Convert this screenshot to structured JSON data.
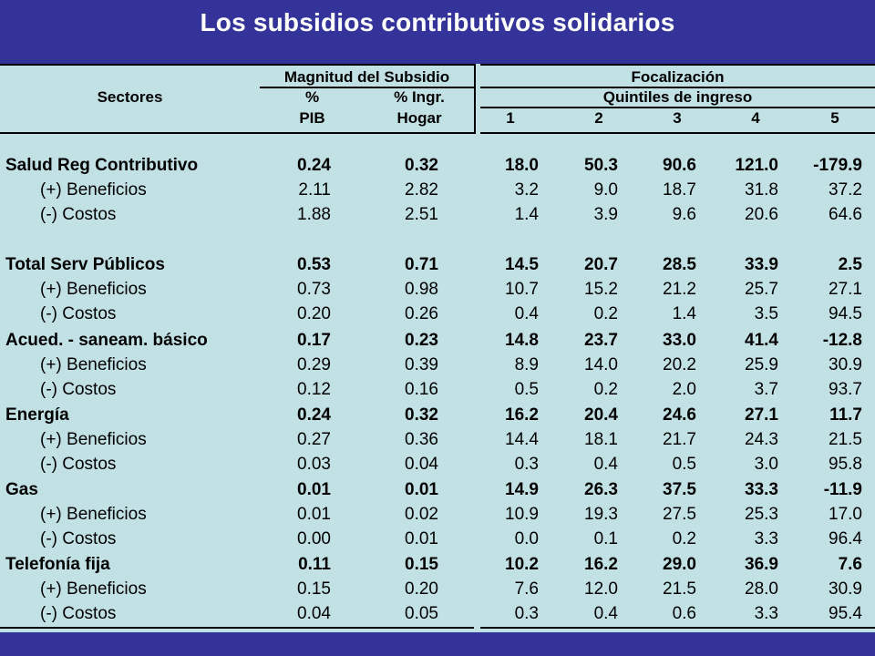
{
  "title": "Los subsidios contributivos solidarios",
  "header": {
    "sectores": "Sectores",
    "magnitud": "Magnitud del Subsidio",
    "pct": "%",
    "pct_ingr": "% Ingr.",
    "pib": "PIB",
    "hogar": "Hogar",
    "focalizacion": "Focalización",
    "quintiles": "Quintiles de ingreso",
    "q": [
      "1",
      "2",
      "3",
      "4",
      "5"
    ]
  },
  "rows": [
    {
      "label": "Salud Reg Contributivo",
      "values": [
        "0.24",
        "0.32",
        "18.0",
        "50.3",
        "90.6",
        "121.0",
        "-179.9"
      ],
      "bold": true
    },
    {
      "label": "(+) Beneficios",
      "values": [
        "2.11",
        "2.82",
        "3.2",
        "9.0",
        "18.7",
        "31.8",
        "37.2"
      ],
      "bold": false
    },
    {
      "label": "(-) Costos",
      "values": [
        "1.88",
        "2.51",
        "1.4",
        "3.9",
        "9.6",
        "20.6",
        "64.6"
      ],
      "bold": false
    },
    {
      "label": "Total Serv Públicos",
      "values": [
        "0.53",
        "0.71",
        "14.5",
        "20.7",
        "28.5",
        "33.9",
        "2.5"
      ],
      "bold": true
    },
    {
      "label": "(+) Beneficios",
      "values": [
        "0.73",
        "0.98",
        "10.7",
        "15.2",
        "21.2",
        "25.7",
        "27.1"
      ],
      "bold": false
    },
    {
      "label": "(-) Costos",
      "values": [
        "0.20",
        "0.26",
        "0.4",
        "0.2",
        "1.4",
        "3.5",
        "94.5"
      ],
      "bold": false
    },
    {
      "label": "Acued. - saneam. básico",
      "values": [
        "0.17",
        "0.23",
        "14.8",
        "23.7",
        "33.0",
        "41.4",
        "-12.8"
      ],
      "bold": true
    },
    {
      "label": "(+) Beneficios",
      "values": [
        "0.29",
        "0.39",
        "8.9",
        "14.0",
        "20.2",
        "25.9",
        "30.9"
      ],
      "bold": false
    },
    {
      "label": "(-) Costos",
      "values": [
        "0.12",
        "0.16",
        "0.5",
        "0.2",
        "2.0",
        "3.7",
        "93.7"
      ],
      "bold": false
    },
    {
      "label": "Energía",
      "values": [
        "0.24",
        "0.32",
        "16.2",
        "20.4",
        "24.6",
        "27.1",
        "11.7"
      ],
      "bold": true
    },
    {
      "label": "(+) Beneficios",
      "values": [
        "0.27",
        "0.36",
        "14.4",
        "18.1",
        "21.7",
        "24.3",
        "21.5"
      ],
      "bold": false
    },
    {
      "label": "(-) Costos",
      "values": [
        "0.03",
        "0.04",
        "0.3",
        "0.4",
        "0.5",
        "3.0",
        "95.8"
      ],
      "bold": false
    },
    {
      "label": "Gas",
      "values": [
        "0.01",
        "0.01",
        "14.9",
        "26.3",
        "37.5",
        "33.3",
        "-11.9"
      ],
      "bold": true
    },
    {
      "label": "(+) Beneficios",
      "values": [
        "0.01",
        "0.02",
        "10.9",
        "19.3",
        "27.5",
        "25.3",
        "17.0"
      ],
      "bold": false
    },
    {
      "label": "(-) Costos",
      "values": [
        "0.00",
        "0.01",
        "0.0",
        "0.1",
        "0.2",
        "3.3",
        "96.4"
      ],
      "bold": false
    },
    {
      "label": "Telefonía fija",
      "values": [
        "0.11",
        "0.15",
        "10.2",
        "16.2",
        "29.0",
        "36.9",
        "7.6"
      ],
      "bold": true
    },
    {
      "label": "(+) Beneficios",
      "values": [
        "0.15",
        "0.20",
        "7.6",
        "12.0",
        "21.5",
        "28.0",
        "30.9"
      ],
      "bold": false
    },
    {
      "label": "(-) Costos",
      "values": [
        "0.04",
        "0.05",
        "0.3",
        "0.4",
        "0.6",
        "3.3",
        "95.4"
      ],
      "bold": false
    }
  ]
}
